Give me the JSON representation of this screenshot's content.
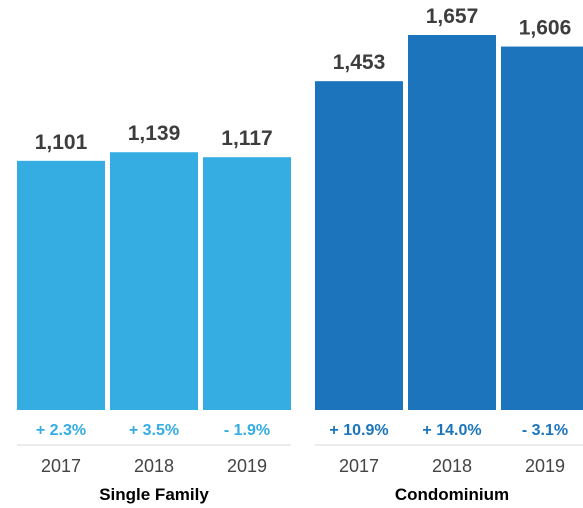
{
  "chart_data": {
    "type": "bar",
    "groups": [
      {
        "name": "Single Family",
        "color": "#35ade3",
        "categories": [
          "2017",
          "2018",
          "2019"
        ],
        "values": [
          1101,
          1139,
          1117
        ],
        "value_labels": [
          "1,101",
          "1,139",
          "1,117"
        ],
        "changes": [
          "+ 2.3%",
          "+ 3.5%",
          "- 1.9%"
        ]
      },
      {
        "name": "Condominium",
        "color": "#1c75bc",
        "categories": [
          "2017",
          "2018",
          "2019"
        ],
        "values": [
          1453,
          1657,
          1606
        ],
        "value_labels": [
          "1,453",
          "1,657",
          "1,606"
        ],
        "changes": [
          "+ 10.9%",
          "+ 14.0%",
          "- 3.1%"
        ]
      }
    ],
    "ylim": [
      0,
      1657
    ],
    "grid": false,
    "legend": "none"
  }
}
